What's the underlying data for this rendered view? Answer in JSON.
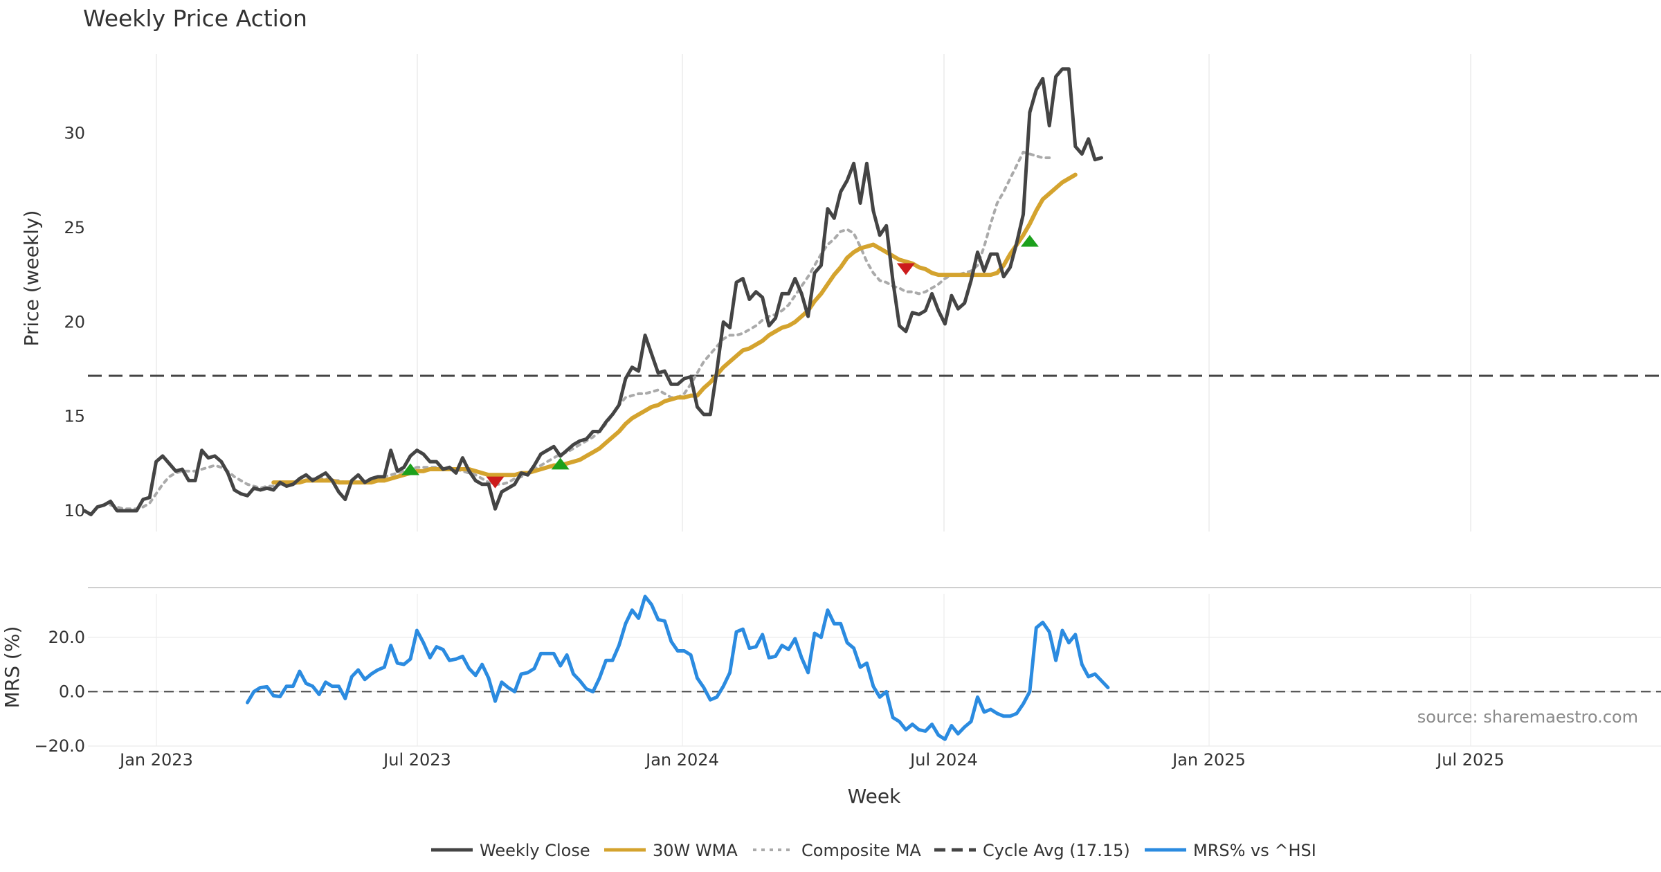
{
  "chart_data": {
    "type": "line",
    "title": "Weekly Price Action",
    "xlabel": "Week",
    "x_ticks": [
      "Jan 2023",
      "Jul 2023",
      "Jan 2024",
      "Jul 2024",
      "Jan 2025",
      "Jul 2025"
    ],
    "source_text": "source: sharemaestro.com",
    "price_panel": {
      "ylabel": "Price (weekly)",
      "ylim": [
        8.9,
        34.2
      ],
      "y_ticks": [
        "10",
        "15",
        "20",
        "25",
        "30"
      ],
      "cycle_avg": 17.15,
      "series": [
        {
          "name": "Weekly Close",
          "color": "#444444",
          "style": "solid",
          "start_index": 0,
          "values": [
            10.0,
            9.8,
            10.2,
            10.3,
            10.5,
            10.0,
            10.0,
            10.0,
            10.0,
            10.6,
            10.7,
            12.6,
            12.9,
            12.5,
            12.1,
            12.2,
            11.6,
            11.6,
            13.2,
            12.8,
            12.9,
            12.6,
            12.0,
            11.1,
            10.9,
            10.8,
            11.2,
            11.1,
            11.2,
            11.1,
            11.5,
            11.3,
            11.4,
            11.7,
            11.9,
            11.6,
            11.8,
            12.0,
            11.6,
            11.0,
            10.6,
            11.6,
            11.9,
            11.5,
            11.7,
            11.8,
            11.8,
            13.2,
            12.1,
            12.3,
            12.9,
            13.2,
            13.0,
            12.6,
            12.6,
            12.2,
            12.3,
            12.0,
            12.8,
            12.1,
            11.6,
            11.4,
            11.4,
            10.1,
            11.0,
            11.2,
            11.4,
            12.0,
            11.9,
            12.4,
            13.0,
            13.2,
            13.4,
            12.9,
            13.2,
            13.5,
            13.7,
            13.8,
            14.2,
            14.2,
            14.7,
            15.1,
            15.6,
            17.0,
            17.6,
            17.4,
            19.3,
            18.3,
            17.3,
            17.4,
            16.7,
            16.7,
            17.0,
            17.1,
            15.5,
            15.1,
            15.1,
            17.4,
            20.0,
            19.7,
            22.1,
            22.3,
            21.2,
            21.6,
            21.3,
            19.8,
            20.2,
            21.5,
            21.5,
            22.3,
            21.5,
            20.3,
            22.6,
            23.0,
            26.0,
            25.5,
            26.9,
            27.5,
            28.4,
            26.3,
            28.4,
            25.9,
            24.6,
            25.1,
            22.2,
            19.8,
            19.5,
            20.5,
            20.4,
            20.6,
            21.5,
            20.6,
            19.9,
            21.4,
            20.7,
            21.0,
            22.2,
            23.7,
            22.7,
            23.6,
            23.6,
            22.4,
            22.9,
            24.2,
            25.7,
            31.1,
            32.3,
            32.9,
            30.4,
            33.0,
            33.4,
            33.4,
            29.3,
            28.9,
            29.7,
            28.6,
            28.7
          ]
        },
        {
          "name": "30W WMA",
          "color": "#d4a32e",
          "style": "solid",
          "start_index": 29,
          "values": [
            11.5,
            11.5,
            11.5,
            11.5,
            11.5,
            11.6,
            11.6,
            11.6,
            11.6,
            11.6,
            11.5,
            11.5,
            11.5,
            11.5,
            11.5,
            11.5,
            11.6,
            11.6,
            11.7,
            11.8,
            11.9,
            12.0,
            12.1,
            12.1,
            12.2,
            12.2,
            12.2,
            12.2,
            12.2,
            12.2,
            12.2,
            12.1,
            12.0,
            11.9,
            11.9,
            11.9,
            11.9,
            11.9,
            12.0,
            12.0,
            12.1,
            12.2,
            12.3,
            12.4,
            12.4,
            12.5,
            12.6,
            12.7,
            12.9,
            13.1,
            13.3,
            13.6,
            13.9,
            14.2,
            14.6,
            14.9,
            15.1,
            15.3,
            15.5,
            15.6,
            15.8,
            15.9,
            16.0,
            16.0,
            16.1,
            16.1,
            16.5,
            16.8,
            17.2,
            17.6,
            17.9,
            18.2,
            18.5,
            18.6,
            18.8,
            19.0,
            19.3,
            19.5,
            19.7,
            19.8,
            20.0,
            20.3,
            20.6,
            21.1,
            21.5,
            22.0,
            22.5,
            22.9,
            23.4,
            23.7,
            23.9,
            24.0,
            24.1,
            23.9,
            23.7,
            23.5,
            23.3,
            23.2,
            23.1,
            22.9,
            22.8,
            22.6,
            22.5,
            22.5,
            22.5,
            22.5,
            22.5,
            22.5,
            22.5,
            22.5,
            22.5,
            22.6,
            23.0,
            23.6,
            24.1,
            24.6,
            25.2,
            25.9,
            26.5,
            26.8,
            27.1,
            27.4,
            27.6,
            27.8
          ]
        },
        {
          "name": "Composite MA",
          "color": "#aaaaaa",
          "style": "dotted",
          "start_index": 4,
          "values": [
            10.3,
            10.2,
            10.1,
            10.1,
            10.1,
            10.2,
            10.4,
            10.9,
            11.4,
            11.8,
            12.0,
            12.1,
            12.1,
            12.1,
            12.2,
            12.3,
            12.4,
            12.3,
            12.1,
            11.8,
            11.6,
            11.4,
            11.3,
            11.2,
            11.3,
            11.3,
            11.4,
            11.4,
            11.4,
            11.5,
            11.6,
            11.7,
            11.7,
            11.7,
            11.6,
            11.6,
            11.5,
            11.5,
            11.5,
            11.5,
            11.6,
            11.7,
            11.8,
            11.9,
            12.0,
            12.1,
            12.2,
            12.3,
            12.3,
            12.3,
            12.3,
            12.2,
            12.2,
            12.2,
            12.1,
            12.0,
            11.9,
            11.7,
            11.5,
            11.4,
            11.4,
            11.5,
            11.7,
            11.8,
            12.0,
            12.2,
            12.4,
            12.6,
            12.8,
            13.0,
            13.1,
            13.3,
            13.5,
            13.7,
            13.9,
            14.2,
            14.6,
            15.1,
            15.6,
            16.0,
            16.1,
            16.2,
            16.2,
            16.3,
            16.4,
            16.2,
            16.0,
            16.0,
            16.2,
            16.7,
            17.3,
            17.9,
            18.3,
            18.7,
            19.1,
            19.3,
            19.3,
            19.4,
            19.6,
            19.8,
            20.1,
            20.3,
            20.4,
            20.6,
            20.9,
            21.4,
            21.9,
            22.4,
            23.0,
            23.6,
            24.1,
            24.4,
            24.8,
            24.9,
            24.7,
            24.0,
            23.2,
            22.6,
            22.2,
            22.1,
            21.9,
            21.8,
            21.6,
            21.6,
            21.5,
            21.6,
            21.8,
            22.0,
            22.3,
            22.5,
            22.5,
            22.6,
            22.7,
            23.0,
            24.0,
            25.2,
            26.3,
            26.9,
            27.6,
            28.3,
            29.0,
            28.9,
            28.8,
            28.7,
            28.7
          ]
        }
      ],
      "signals": [
        {
          "type": "buy",
          "index": 50,
          "value": 12.2,
          "color": "#1ca01c"
        },
        {
          "type": "sell",
          "index": 63,
          "value": 11.5,
          "color": "#cc1c1c"
        },
        {
          "type": "buy",
          "index": 73,
          "value": 12.5,
          "color": "#1ca01c"
        },
        {
          "type": "sell",
          "index": 126,
          "value": 22.8,
          "color": "#cc1c1c"
        },
        {
          "type": "buy",
          "index": 145,
          "value": 24.3,
          "color": "#1ca01c"
        }
      ]
    },
    "mrs_panel": {
      "ylabel": "MRS (%)",
      "ylim": [
        -20,
        36
      ],
      "y_ticks": [
        "20.0",
        "0.0",
        "−20.0"
      ],
      "series": [
        {
          "name": "MRS% vs ^HSI",
          "color": "#2b8be0",
          "style": "solid",
          "start_index": 25,
          "values": [
            -4,
            0,
            1.5,
            1.8,
            -1.5,
            -1.8,
            2,
            2,
            7.5,
            3,
            2,
            -1,
            3.5,
            2,
            2,
            -2.5,
            5.5,
            8,
            4.5,
            6.5,
            8,
            9,
            17,
            10.5,
            10,
            12,
            22.5,
            18,
            12.5,
            16.5,
            15.5,
            11.5,
            12,
            13,
            8.5,
            6,
            10,
            5,
            -3.5,
            3.5,
            1.5,
            0,
            6.5,
            7,
            8.5,
            14,
            14,
            14,
            9.5,
            13.5,
            6.5,
            4,
            1,
            0,
            5,
            11.5,
            11.5,
            17,
            25,
            30,
            27,
            35,
            32,
            26.5,
            26,
            18.5,
            15,
            15,
            13.5,
            5,
            1.5,
            -3,
            -2,
            2,
            7,
            22,
            23,
            16,
            16.5,
            21,
            12.5,
            13,
            17,
            15.5,
            19.5,
            12.5,
            7,
            21.5,
            20,
            30,
            25,
            25,
            18,
            16,
            9,
            10.5,
            2,
            -2,
            0,
            -9.5,
            -11,
            -14,
            -12,
            -14,
            -14.5,
            -12,
            -16,
            -17.5,
            -12.5,
            -15.5,
            -13,
            -11,
            -2,
            -7.5,
            -6.5,
            -8,
            -9,
            -9,
            -8,
            -4.5,
            0,
            23.5,
            25.5,
            22,
            11.5,
            22.5,
            18,
            21,
            10,
            5.5,
            6.5,
            4,
            1.5
          ]
        }
      ]
    },
    "legend": [
      {
        "label": "Weekly Close",
        "color": "#444444",
        "style": "solid"
      },
      {
        "label": "30W WMA",
        "color": "#d4a32e",
        "style": "solid"
      },
      {
        "label": "Composite MA",
        "color": "#aaaaaa",
        "style": "dotted"
      },
      {
        "label": "Cycle Avg (17.15)",
        "color": "#444444",
        "style": "dashed"
      },
      {
        "label": "MRS% vs ^HSI",
        "color": "#2b8be0",
        "style": "solid"
      }
    ]
  }
}
